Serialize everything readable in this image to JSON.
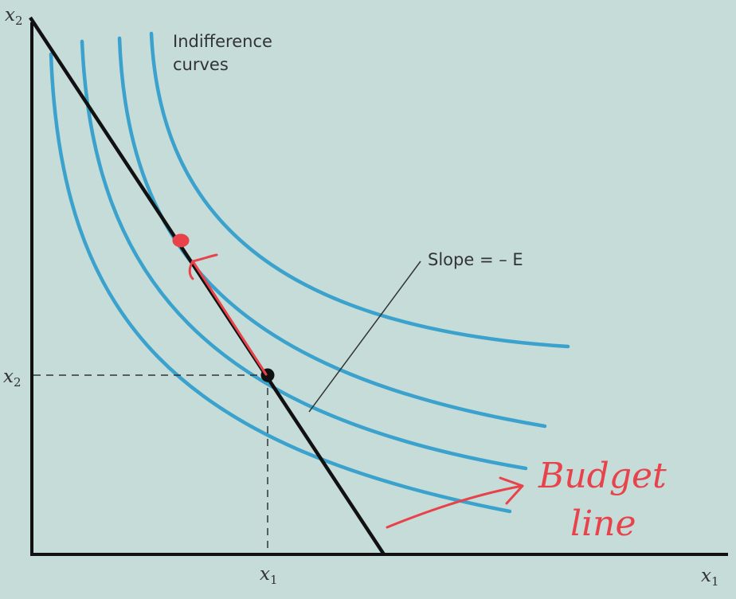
{
  "diagram": {
    "axes": {
      "y_axis_label": "x",
      "y_axis_sub": "2",
      "x_axis_label": "x",
      "x_axis_sub": "1"
    },
    "ticks": {
      "x2_label": "x",
      "x2_sub": "2",
      "x1_label": "x",
      "x1_sub": "1"
    },
    "annotations": {
      "indifference_line1": "Indifference",
      "indifference_line2": "curves",
      "slope_label": "Slope = – E"
    },
    "handwriting": {
      "line1": "Budget",
      "line2": "line"
    },
    "colors": {
      "background": "#c5dcd9",
      "curve": "#3aa2cc",
      "budget_line": "#111111",
      "ink": "#e8424a"
    }
  }
}
